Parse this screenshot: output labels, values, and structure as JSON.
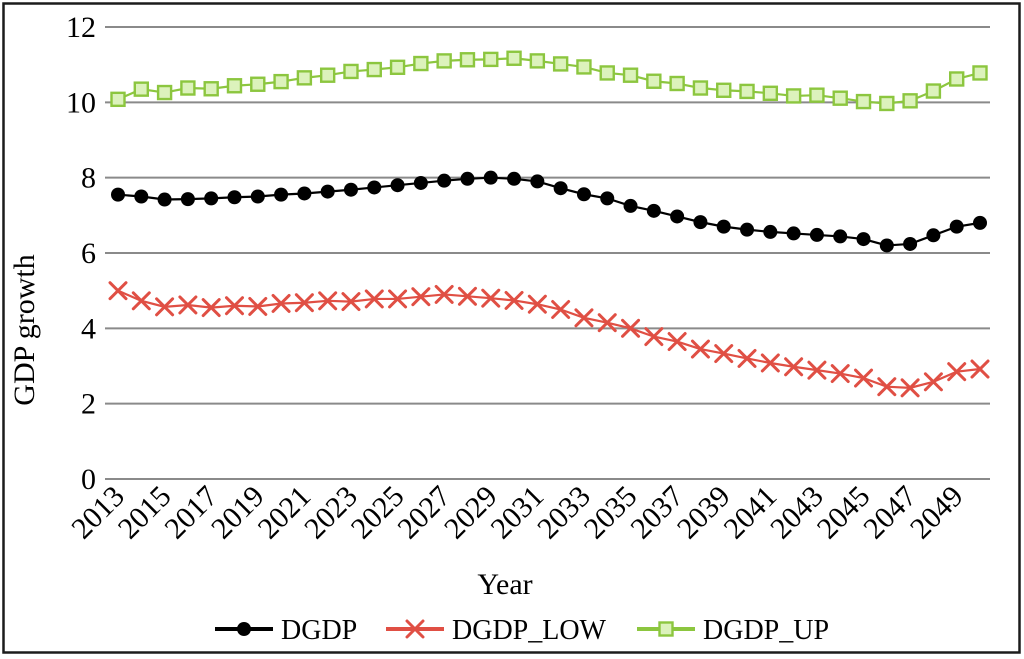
{
  "figure": {
    "background": "#ffffff",
    "border_color": "#1c1c1c",
    "gridline_color": "#8a8a8a"
  },
  "chart_data": {
    "type": "line",
    "title": "",
    "xlabel": "Year",
    "ylabel": "GDP growth",
    "x": [
      2013,
      2014,
      2015,
      2016,
      2017,
      2018,
      2019,
      2020,
      2021,
      2022,
      2023,
      2024,
      2025,
      2026,
      2027,
      2028,
      2029,
      2030,
      2031,
      2032,
      2033,
      2034,
      2035,
      2036,
      2037,
      2038,
      2039,
      2040,
      2041,
      2042,
      2043,
      2044,
      2045,
      2046,
      2047,
      2048,
      2049,
      2050
    ],
    "x_tick_labels": [
      "2013",
      "2015",
      "2017",
      "2019",
      "2021",
      "2023",
      "2025",
      "2027",
      "2029",
      "2031",
      "2033",
      "2035",
      "2037",
      "2039",
      "2041",
      "2043",
      "2045",
      "2047",
      "2049"
    ],
    "y_ticks": [
      0,
      2,
      4,
      6,
      8,
      10,
      12
    ],
    "ylim": [
      0,
      12
    ],
    "grid": "horizontal-only",
    "legend_position": "bottom",
    "series": [
      {
        "name": "DGDP",
        "marker": "circle",
        "color": "#000000",
        "fill": "#000000",
        "values": [
          7.55,
          7.5,
          7.42,
          7.43,
          7.45,
          7.48,
          7.5,
          7.55,
          7.58,
          7.63,
          7.68,
          7.74,
          7.8,
          7.86,
          7.92,
          7.97,
          8.0,
          7.97,
          7.9,
          7.72,
          7.56,
          7.45,
          7.25,
          7.12,
          6.97,
          6.82,
          6.7,
          6.62,
          6.56,
          6.52,
          6.48,
          6.44,
          6.37,
          6.2,
          6.24,
          6.47,
          6.7,
          6.8
        ]
      },
      {
        "name": "DGDP_LOW",
        "marker": "x",
        "color": "#e04f44",
        "fill": "none",
        "values": [
          5.0,
          4.73,
          4.57,
          4.62,
          4.55,
          4.6,
          4.58,
          4.66,
          4.68,
          4.73,
          4.71,
          4.78,
          4.78,
          4.84,
          4.9,
          4.85,
          4.8,
          4.74,
          4.64,
          4.5,
          4.28,
          4.15,
          4.0,
          3.78,
          3.65,
          3.45,
          3.33,
          3.2,
          3.08,
          2.98,
          2.89,
          2.8,
          2.68,
          2.45,
          2.42,
          2.58,
          2.85,
          2.92
        ]
      },
      {
        "name": "DGDP_UP",
        "marker": "square",
        "color": "#8cc63f",
        "fill": "#dcf2bc",
        "values": [
          10.08,
          10.35,
          10.26,
          10.38,
          10.36,
          10.44,
          10.48,
          10.55,
          10.65,
          10.72,
          10.82,
          10.87,
          10.93,
          11.03,
          11.1,
          11.13,
          11.14,
          11.17,
          11.1,
          11.02,
          10.94,
          10.78,
          10.72,
          10.56,
          10.5,
          10.38,
          10.32,
          10.29,
          10.24,
          10.17,
          10.19,
          10.11,
          10.02,
          9.97,
          10.04,
          10.3,
          10.62,
          10.78
        ]
      }
    ]
  }
}
